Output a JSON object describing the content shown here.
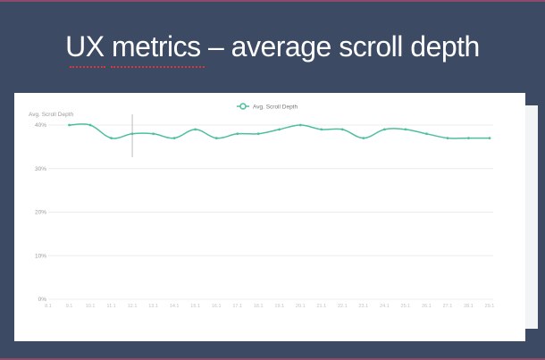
{
  "slide": {
    "title": "UX metrics – average scroll depth"
  },
  "colors": {
    "background": "#3d4a63",
    "line": "#4dbf9f",
    "grid": "#ececec",
    "crosshair": "#bdbdbd",
    "text": "#9a9a9a"
  },
  "chart_data": {
    "type": "line",
    "ylabel": "Avg. Scroll Depth",
    "legend": "top-center",
    "grid": true,
    "ylim": [
      0,
      40
    ],
    "y_ticks": [
      "0%",
      "10%",
      "20%",
      "30%",
      "40%"
    ],
    "y_tick_values": [
      0,
      10,
      20,
      30,
      40
    ],
    "categories": [
      "8.1",
      "9.1",
      "10.1",
      "11.1",
      "12.1",
      "13.1",
      "14.1",
      "15.1",
      "16.1",
      "17.1",
      "18.1",
      "19.1",
      "20.1",
      "21.1",
      "22.1",
      "23.1",
      "24.1",
      "25.1",
      "26.1",
      "27.1",
      "28.1",
      "29.1"
    ],
    "series": [
      {
        "name": "Avg. Scroll Depth",
        "values": [
          null,
          40,
          40,
          37,
          38,
          38,
          37,
          39,
          37,
          38,
          38,
          39,
          40,
          39,
          39,
          37,
          39,
          39,
          38,
          37,
          37,
          37
        ]
      }
    ],
    "crosshair_category": "12.1"
  }
}
